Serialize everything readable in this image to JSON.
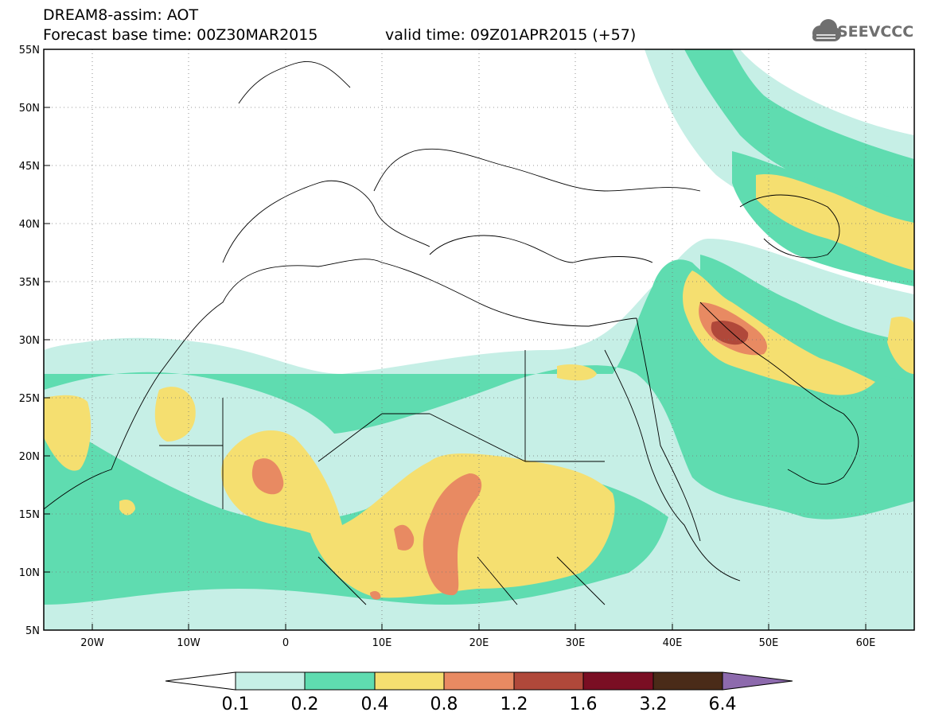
{
  "header": {
    "title": "DREAM8-assim: AOT",
    "base_time": "Forecast base time: 00Z30MAR2015",
    "valid_time": "valid time: 09Z01APR2015 (+57)",
    "logo": "SEEVCCC"
  },
  "map": {
    "product": "DREAM8-assim AOT forecast",
    "lon_range": [
      -25,
      65
    ],
    "lat_range": [
      5,
      55
    ],
    "lon_ticks": [
      "20W",
      "10W",
      "0",
      "10E",
      "20E",
      "30E",
      "40E",
      "50E",
      "60E"
    ],
    "lat_ticks": [
      "55N",
      "50N",
      "45N",
      "40N",
      "35N",
      "30N",
      "25N",
      "20N",
      "15N",
      "10N",
      "5N"
    ],
    "gridlines": "dotted"
  },
  "colorbar": {
    "labels": [
      "0.1",
      "0.2",
      "0.4",
      "0.8",
      "1.2",
      "1.6",
      "3.2",
      "6.4"
    ],
    "colors": [
      "#ffffff",
      "#c6efe6",
      "#5fdcb0",
      "#f5df70",
      "#e88a62",
      "#b0483a",
      "#7a0e23",
      "#4a2b18",
      "#8d6aad"
    ]
  }
}
